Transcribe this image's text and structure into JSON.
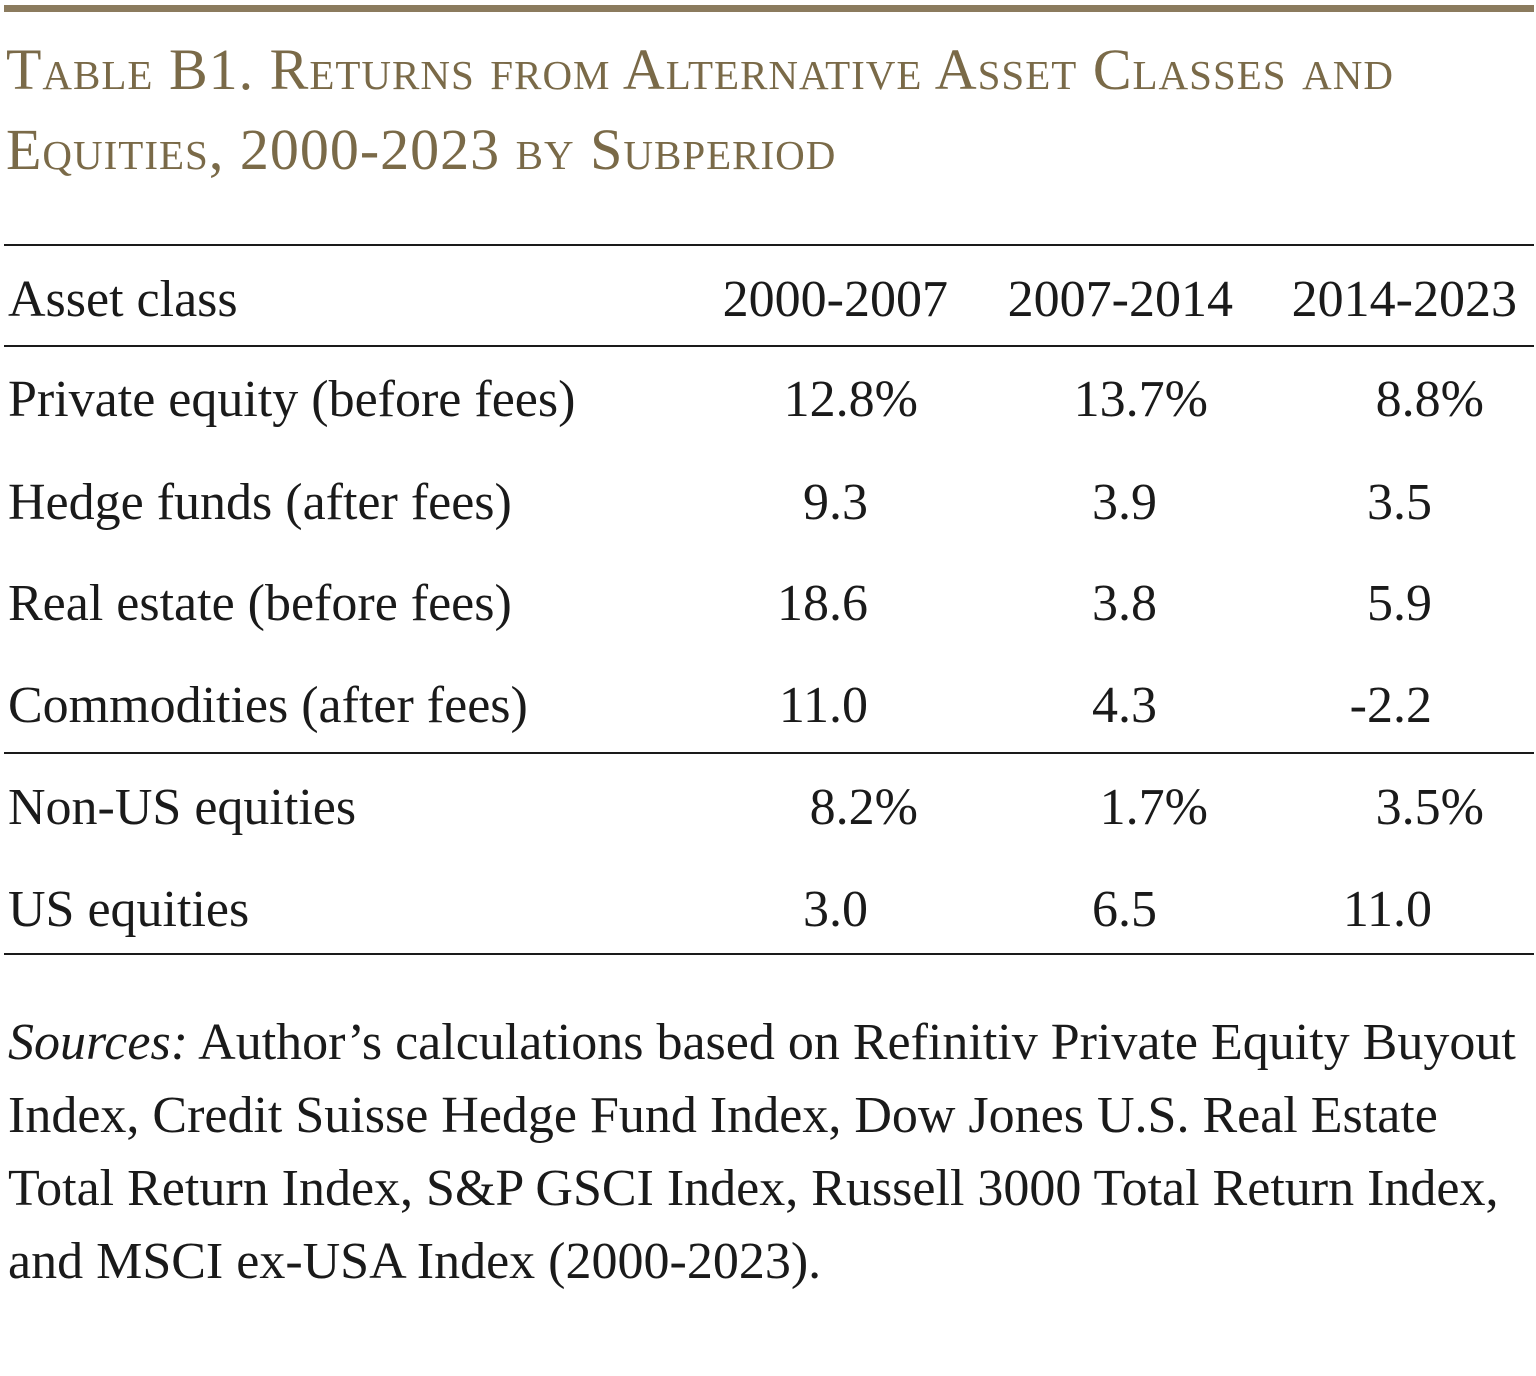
{
  "header": {
    "title": "Table B1. Returns from Alternative Asset Classes and Equities, 2000-2023 by Subperiod"
  },
  "table": {
    "columns": [
      "Asset class",
      "2000-2007",
      "2007-2014",
      "2014-2023"
    ],
    "rows": [
      [
        "Private equity (before fees)",
        "12.8%",
        "13.7%",
        "8.8%"
      ],
      [
        "Hedge funds (after fees)",
        "9.3",
        "3.9",
        "3.5"
      ],
      [
        "Real estate (before fees)",
        "18.6",
        "3.8",
        "5.9"
      ],
      [
        "Commodities (after fees)",
        "11.0",
        "4.3",
        "-2.2"
      ],
      [
        "Non-US equities",
        "8.2%",
        "1.7%",
        "3.5%"
      ],
      [
        "US equities",
        "3.0",
        "6.5",
        "11.0"
      ]
    ]
  },
  "note": {
    "label": "Sources:",
    "text": "Author’s calculations based on Refinitiv Private Equity Buyout Index, Credit Suisse Hedge Fund Index, Dow Jones U.S. Real Estate Total Return Index, S&P GSCI Index, Russell 3000 Total Return Index, and MSCI ex-USA Index (2000-2023)."
  }
}
